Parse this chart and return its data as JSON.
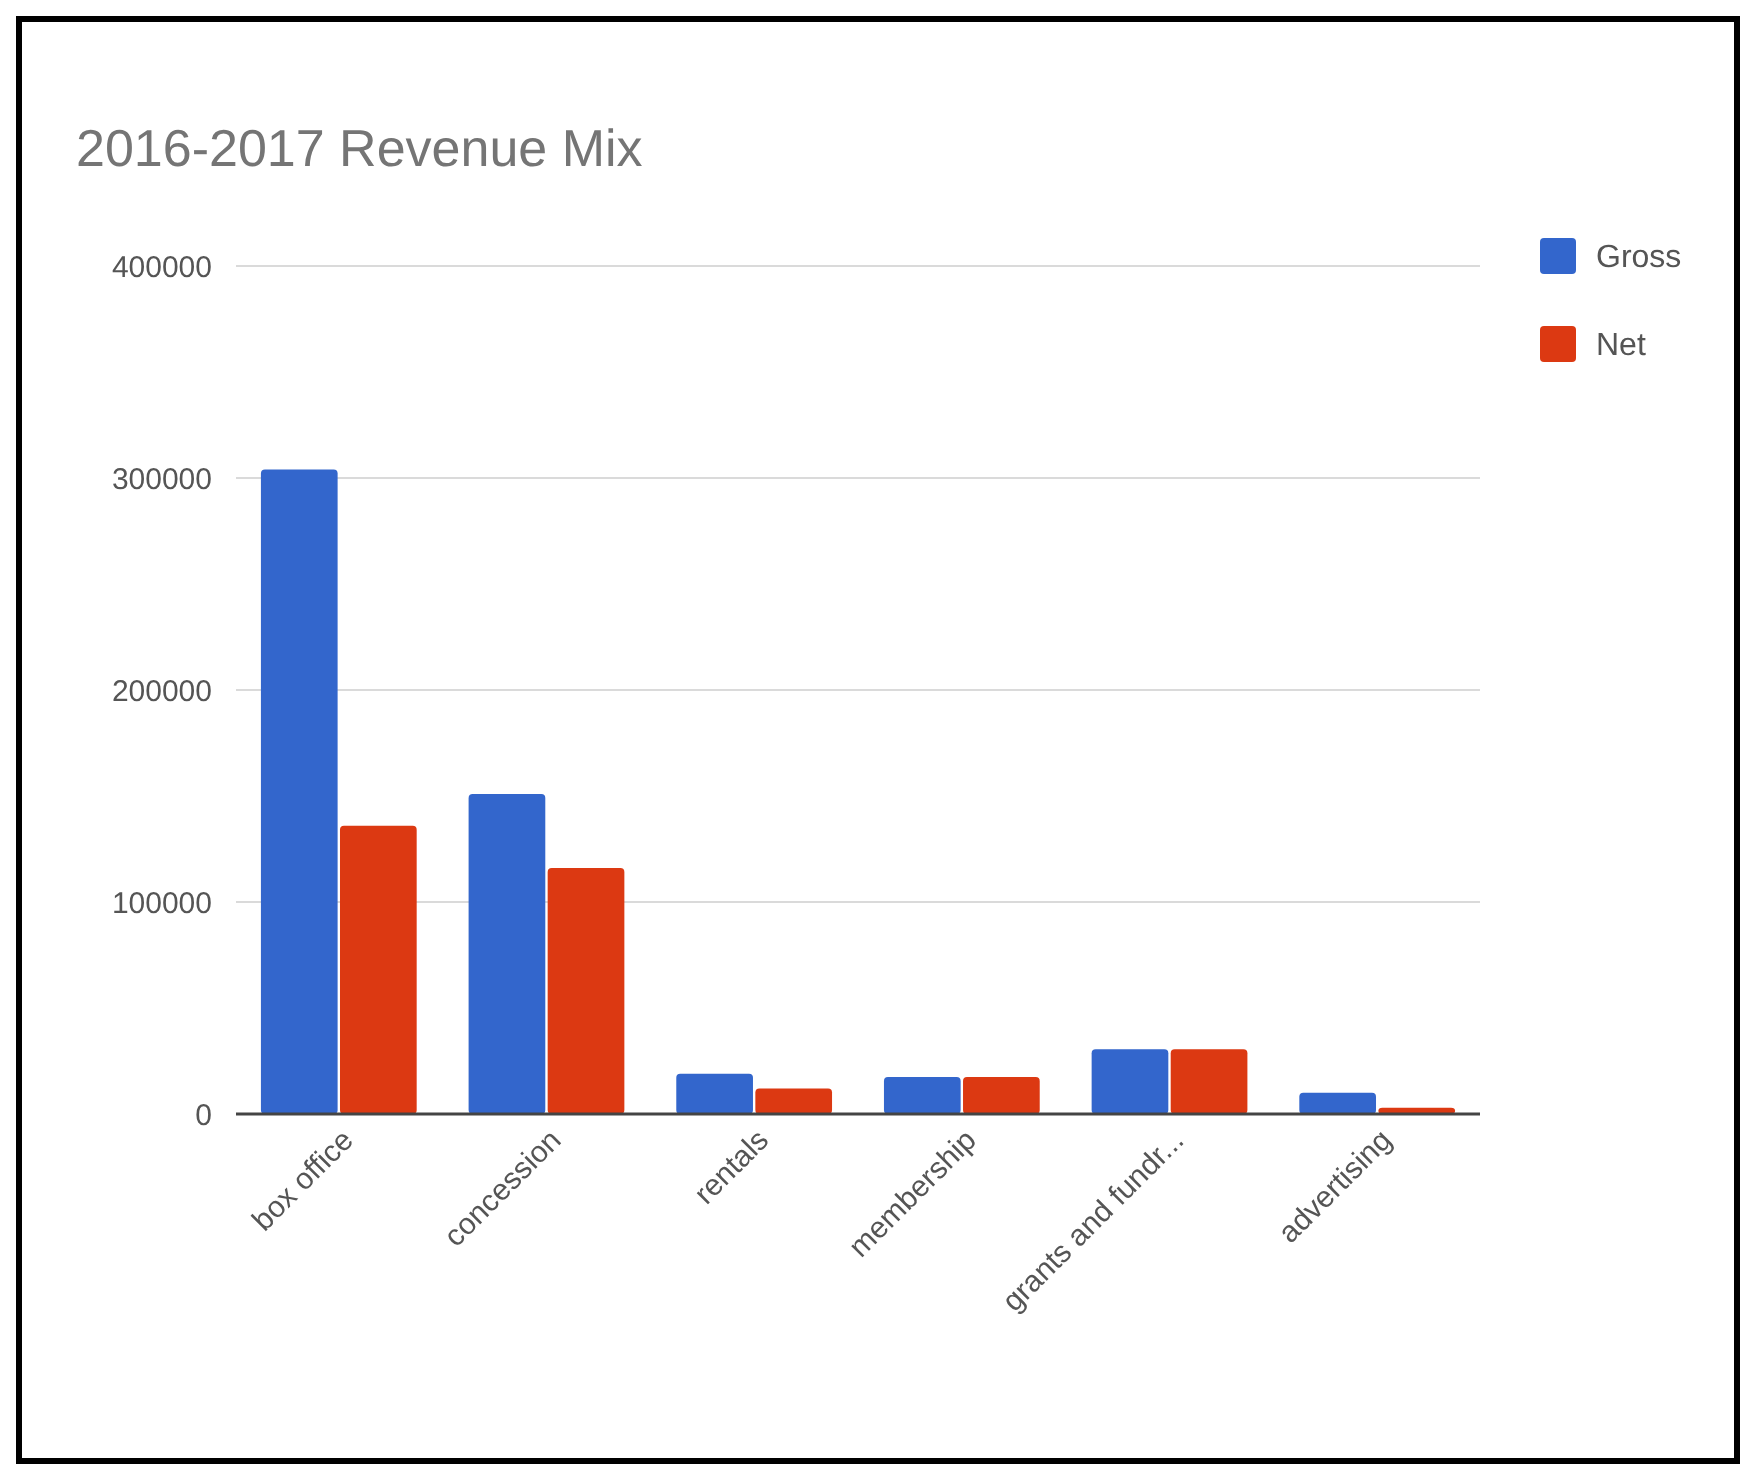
{
  "chart_data": {
    "type": "bar",
    "title": "2016-2017 Revenue Mix",
    "categories": [
      "box office",
      "concession",
      "rentals",
      "membership",
      "grants and fundr...",
      "advertising"
    ],
    "series": [
      {
        "name": "Gross",
        "color": "#3366cc",
        "values": [
          304000,
          151000,
          19000,
          17500,
          30500,
          10000
        ]
      },
      {
        "name": "Net",
        "color": "#dc3912",
        "values": [
          136000,
          116000,
          12000,
          17500,
          30500,
          3000
        ]
      }
    ],
    "ylim": [
      0,
      400000
    ],
    "yticks": [
      0,
      100000,
      200000,
      300000,
      400000
    ],
    "grid": "y",
    "legend": "top right"
  }
}
